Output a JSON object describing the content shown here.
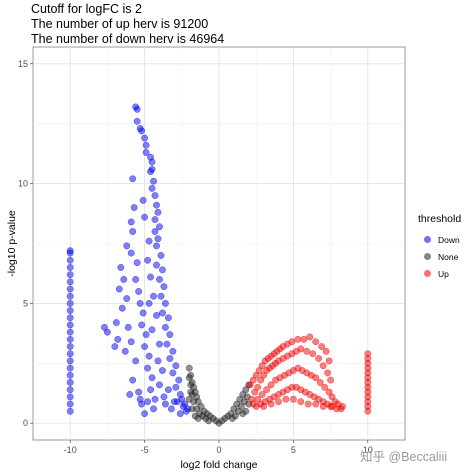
{
  "title_lines": [
    "Cutoff for logFC is 2",
    "The number of up herv is 91200",
    "The number of down herv is 46964"
  ],
  "watermark": "知乎 @Beccaliii",
  "chart_data": {
    "type": "scatter",
    "xlabel": "log2 fold change",
    "ylabel": "-log10 p-value",
    "xlim": [
      -12.5,
      12.5
    ],
    "ylim": [
      -0.7,
      15.7
    ],
    "x_ticks": [
      -10,
      -5,
      0,
      5,
      10
    ],
    "x_tick_labels": [
      "-10",
      "-5",
      "0",
      "5",
      "10"
    ],
    "y_ticks": [
      0,
      5,
      10,
      15
    ],
    "y_tick_labels": [
      "0",
      "5",
      "10",
      "15"
    ],
    "grid": true,
    "legend": {
      "title": "threshold",
      "position": "right",
      "entries": [
        {
          "name": "Down",
          "color": "#0000ee"
        },
        {
          "name": "None",
          "color": "#222222"
        },
        {
          "name": "Up",
          "color": "#ee0000"
        }
      ]
    },
    "series": [
      {
        "name": "Down",
        "color": "#0000ee",
        "points": [
          [
            -5.6,
            13.2
          ],
          [
            -5.5,
            13.1
          ],
          [
            -5.5,
            12.6
          ],
          [
            -5.3,
            12.3
          ],
          [
            -5.2,
            12.2
          ],
          [
            -5.0,
            11.9
          ],
          [
            -4.9,
            11.6
          ],
          [
            -4.9,
            11.3
          ],
          [
            -4.6,
            11.1
          ],
          [
            -4.5,
            10.9
          ],
          [
            -4.5,
            10.6
          ],
          [
            -4.6,
            10.5
          ],
          [
            -4.4,
            10.1
          ],
          [
            -4.5,
            9.8
          ],
          [
            -4.3,
            9.5
          ],
          [
            -4.2,
            9.1
          ],
          [
            -4.1,
            8.8
          ],
          [
            -4.3,
            8.5
          ],
          [
            -4.0,
            8.2
          ],
          [
            -4.3,
            8.0
          ],
          [
            -4.1,
            7.7
          ],
          [
            -4.2,
            7.4
          ],
          [
            -3.9,
            7.0
          ],
          [
            -4.2,
            6.6
          ],
          [
            -3.8,
            6.4
          ],
          [
            -4.0,
            6.0
          ],
          [
            -3.7,
            5.7
          ],
          [
            -3.9,
            5.3
          ],
          [
            -3.6,
            5.0
          ],
          [
            -3.8,
            4.6
          ],
          [
            -3.4,
            4.4
          ],
          [
            -3.6,
            4.0
          ],
          [
            -3.3,
            3.7
          ],
          [
            -3.5,
            3.3
          ],
          [
            -3.1,
            3.0
          ],
          [
            -3.3,
            2.7
          ],
          [
            -2.9,
            2.4
          ],
          [
            -3.1,
            2.1
          ],
          [
            -2.7,
            1.8
          ],
          [
            -2.9,
            1.5
          ],
          [
            -2.6,
            1.2
          ],
          [
            -2.8,
            0.9
          ],
          [
            -2.4,
            0.7
          ],
          [
            -2.2,
            0.5
          ],
          [
            -2.6,
            0.4
          ],
          [
            -5.8,
            10.2
          ],
          [
            -5.7,
            9.0
          ],
          [
            -5.8,
            8.0
          ],
          [
            -5.9,
            7.1
          ],
          [
            -5.5,
            6.7
          ],
          [
            -5.6,
            6.0
          ],
          [
            -5.4,
            5.5
          ],
          [
            -5.3,
            5.0
          ],
          [
            -5.1,
            4.6
          ],
          [
            -5.2,
            4.1
          ],
          [
            -4.9,
            3.7
          ],
          [
            -5.0,
            3.2
          ],
          [
            -4.7,
            2.8
          ],
          [
            -4.8,
            2.3
          ],
          [
            -4.5,
            1.9
          ],
          [
            -4.6,
            1.4
          ],
          [
            -4.3,
            1.0
          ],
          [
            -4.4,
            0.6
          ],
          [
            -6.4,
            6.0
          ],
          [
            -6.6,
            6.5
          ],
          [
            -6.2,
            5.2
          ],
          [
            -6.5,
            4.8
          ],
          [
            -6.7,
            5.6
          ],
          [
            -6.9,
            4.2
          ],
          [
            -6.1,
            4.0
          ],
          [
            -5.9,
            3.4
          ],
          [
            -6.3,
            3.0
          ],
          [
            -5.6,
            2.6
          ],
          [
            -5.8,
            1.8
          ],
          [
            -5.4,
            1.3
          ],
          [
            -5.2,
            0.8
          ],
          [
            -5.0,
            0.4
          ],
          [
            -7.7,
            4.0
          ],
          [
            -7.5,
            3.8
          ],
          [
            -7.0,
            3.2
          ],
          [
            -6.8,
            3.5
          ],
          [
            -6.0,
            1.2
          ],
          [
            -5.3,
            1.0
          ],
          [
            -4.8,
            0.9
          ],
          [
            -6.2,
            7.4
          ],
          [
            -5.9,
            8.4
          ],
          [
            -5.1,
            9.3
          ],
          [
            -5.0,
            8.6
          ],
          [
            -4.7,
            7.6
          ],
          [
            -4.8,
            6.8
          ],
          [
            -4.6,
            6.1
          ],
          [
            -4.4,
            5.3
          ],
          [
            -4.7,
            5.0
          ],
          [
            -4.2,
            4.5
          ],
          [
            -4.5,
            3.9
          ],
          [
            -4.0,
            3.3
          ],
          [
            -4.1,
            2.6
          ],
          [
            -3.8,
            2.2
          ],
          [
            -4.0,
            1.6
          ],
          [
            -3.7,
            1.1
          ],
          [
            -3.4,
            1.4
          ],
          [
            -3.6,
            0.8
          ],
          [
            -3.2,
            0.6
          ],
          [
            -3.0,
            0.9
          ],
          [
            -2.5,
            1.0
          ],
          [
            -2.3,
            0.8
          ],
          [
            -2.1,
            0.6
          ],
          [
            -10,
            7.2
          ],
          [
            -10,
            7.1
          ],
          [
            -10,
            6.8
          ],
          [
            -10,
            6.5
          ],
          [
            -10,
            6.2
          ],
          [
            -10,
            5.9
          ],
          [
            -10,
            5.6
          ],
          [
            -10,
            5.3
          ],
          [
            -10,
            5.0
          ],
          [
            -10,
            4.7
          ],
          [
            -10,
            4.4
          ],
          [
            -10,
            4.1
          ],
          [
            -10,
            3.8
          ],
          [
            -10,
            3.5
          ],
          [
            -10,
            3.2
          ],
          [
            -10,
            2.9
          ],
          [
            -10,
            2.6
          ],
          [
            -10,
            2.3
          ],
          [
            -10,
            2.0
          ],
          [
            -10,
            1.7
          ],
          [
            -10,
            1.4
          ],
          [
            -10,
            1.1
          ],
          [
            -10,
            0.8
          ],
          [
            -10,
            0.5
          ]
        ]
      },
      {
        "name": "None",
        "color": "#222222",
        "points": [
          [
            -2.0,
            2.3
          ],
          [
            -1.9,
            2.0
          ],
          [
            -1.8,
            1.7
          ],
          [
            -1.7,
            1.5
          ],
          [
            -1.6,
            1.3
          ],
          [
            -1.5,
            1.1
          ],
          [
            -1.4,
            0.9
          ],
          [
            -1.2,
            0.7
          ],
          [
            -1.0,
            0.5
          ],
          [
            -0.8,
            0.4
          ],
          [
            -0.6,
            0.3
          ],
          [
            -0.4,
            0.2
          ],
          [
            -0.2,
            0.1
          ],
          [
            0.0,
            0.0
          ],
          [
            0.2,
            0.1
          ],
          [
            0.4,
            0.2
          ],
          [
            0.6,
            0.3
          ],
          [
            0.8,
            0.4
          ],
          [
            1.0,
            0.6
          ],
          [
            1.2,
            0.8
          ],
          [
            1.4,
            1.0
          ],
          [
            1.6,
            1.2
          ],
          [
            1.8,
            1.4
          ],
          [
            2.0,
            1.6
          ],
          [
            -1.9,
            1.3
          ],
          [
            -1.7,
            0.9
          ],
          [
            -1.5,
            0.6
          ],
          [
            -1.3,
            0.4
          ],
          [
            -1.1,
            0.3
          ],
          [
            -0.9,
            0.2
          ],
          [
            -0.7,
            0.1
          ],
          [
            -2.0,
            1.0
          ],
          [
            -1.8,
            0.6
          ],
          [
            -1.6,
            0.3
          ],
          [
            -1.4,
            0.2
          ],
          [
            0.9,
            0.2
          ],
          [
            1.1,
            0.3
          ],
          [
            1.3,
            0.5
          ],
          [
            1.5,
            0.7
          ],
          [
            1.7,
            0.9
          ],
          [
            1.9,
            1.1
          ],
          [
            2.0,
            0.8
          ],
          [
            1.8,
            0.5
          ],
          [
            1.6,
            0.4
          ],
          [
            -2.0,
            1.9
          ],
          [
            -1.9,
            1.6
          ],
          [
            -1.8,
            1.2
          ]
        ]
      },
      {
        "name": "Up",
        "color": "#ee0000",
        "points": [
          [
            2.1,
            1.6
          ],
          [
            2.3,
            1.8
          ],
          [
            2.5,
            2.0
          ],
          [
            2.7,
            2.2
          ],
          [
            2.9,
            2.4
          ],
          [
            3.1,
            2.6
          ],
          [
            3.3,
            2.7
          ],
          [
            3.5,
            2.8
          ],
          [
            3.7,
            2.9
          ],
          [
            3.9,
            3.0
          ],
          [
            4.1,
            3.1
          ],
          [
            4.3,
            3.2
          ],
          [
            4.6,
            3.3
          ],
          [
            4.9,
            3.4
          ],
          [
            5.3,
            3.5
          ],
          [
            5.7,
            3.5
          ],
          [
            6.1,
            3.6
          ],
          [
            6.5,
            3.4
          ],
          [
            6.9,
            3.2
          ],
          [
            7.2,
            3.0
          ],
          [
            7.4,
            2.6
          ],
          [
            2.2,
            1.0
          ],
          [
            2.4,
            1.3
          ],
          [
            2.6,
            1.5
          ],
          [
            2.8,
            1.8
          ],
          [
            3.0,
            2.0
          ],
          [
            3.2,
            2.2
          ],
          [
            3.4,
            2.3
          ],
          [
            3.6,
            2.4
          ],
          [
            3.8,
            2.5
          ],
          [
            4.0,
            2.6
          ],
          [
            4.3,
            2.7
          ],
          [
            4.6,
            2.8
          ],
          [
            4.9,
            2.9
          ],
          [
            5.2,
            3.0
          ],
          [
            5.5,
            3.1
          ],
          [
            5.9,
            3.0
          ],
          [
            6.3,
            2.9
          ],
          [
            6.7,
            2.7
          ],
          [
            7.0,
            2.4
          ],
          [
            7.3,
            2.1
          ],
          [
            7.5,
            1.8
          ],
          [
            2.3,
            0.8
          ],
          [
            2.6,
            1.0
          ],
          [
            2.9,
            1.2
          ],
          [
            3.2,
            1.4
          ],
          [
            3.5,
            1.6
          ],
          [
            3.8,
            1.8
          ],
          [
            4.1,
            1.9
          ],
          [
            4.4,
            2.0
          ],
          [
            4.7,
            2.1
          ],
          [
            5.0,
            2.2
          ],
          [
            5.3,
            2.3
          ],
          [
            5.6,
            2.2
          ],
          [
            5.9,
            2.1
          ],
          [
            6.2,
            2.0
          ],
          [
            6.5,
            1.9
          ],
          [
            6.8,
            1.7
          ],
          [
            7.1,
            1.5
          ],
          [
            7.4,
            1.3
          ],
          [
            7.6,
            1.1
          ],
          [
            7.8,
            0.9
          ],
          [
            2.5,
            0.7
          ],
          [
            2.8,
            0.8
          ],
          [
            3.1,
            0.9
          ],
          [
            3.4,
            1.0
          ],
          [
            3.7,
            1.1
          ],
          [
            4.0,
            1.2
          ],
          [
            4.3,
            1.3
          ],
          [
            4.6,
            1.4
          ],
          [
            4.9,
            1.5
          ],
          [
            5.2,
            1.5
          ],
          [
            5.5,
            1.4
          ],
          [
            5.8,
            1.3
          ],
          [
            6.1,
            1.2
          ],
          [
            6.4,
            1.1
          ],
          [
            6.7,
            1.0
          ],
          [
            7.0,
            0.9
          ],
          [
            7.3,
            0.8
          ],
          [
            7.6,
            0.7
          ],
          [
            7.9,
            0.6
          ],
          [
            8.2,
            0.6
          ],
          [
            3.0,
            0.7
          ],
          [
            3.5,
            0.8
          ],
          [
            4.0,
            0.9
          ],
          [
            4.5,
            1.0
          ],
          [
            5.0,
            1.0
          ],
          [
            5.5,
            0.9
          ],
          [
            6.0,
            0.8
          ],
          [
            6.5,
            0.8
          ],
          [
            7.0,
            0.7
          ],
          [
            7.5,
            0.7
          ],
          [
            8.0,
            0.8
          ],
          [
            8.3,
            0.7
          ],
          [
            10,
            2.9
          ],
          [
            10,
            2.7
          ],
          [
            10,
            2.5
          ],
          [
            10,
            2.3
          ],
          [
            10,
            2.1
          ],
          [
            10,
            1.9
          ],
          [
            10,
            1.7
          ],
          [
            10,
            1.5
          ],
          [
            10,
            1.3
          ],
          [
            10,
            1.1
          ],
          [
            10,
            0.9
          ],
          [
            10,
            0.7
          ],
          [
            10,
            0.5
          ]
        ]
      }
    ]
  }
}
